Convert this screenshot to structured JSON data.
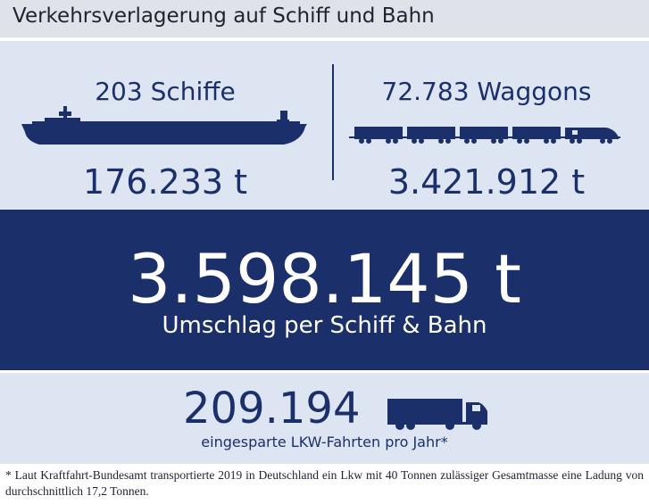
{
  "header": {
    "title": "Verkehrsverlagerung auf Schiff und Bahn"
  },
  "ship": {
    "label": "203 Schiffe",
    "tonnage": "176.233 t",
    "icon": "cargo-ship-icon"
  },
  "rail": {
    "label": "72.783 Waggons",
    "tonnage": "3.421.912 t",
    "icon": "freight-train-icon"
  },
  "total": {
    "value": "3.598.145 t",
    "caption": "Umschlag per Schiff & Bahn"
  },
  "trucks": {
    "value": "209.194",
    "caption": "eingesparte LKW-Fahrten pro Jahr*",
    "icon": "truck-icon"
  },
  "footnote": "* Laut Kraftfahrt-Bundesamt transportierte 2019 in Deutschland ein Lkw mit 40 Tonnen zulässiger Gesamtmasse eine Ladung von durchschnittlich 17,2 Tonnen.",
  "colors": {
    "navy": "#1b2f6b",
    "light_panel": "#dde5f2",
    "header_bg": "#dfe2e8"
  }
}
